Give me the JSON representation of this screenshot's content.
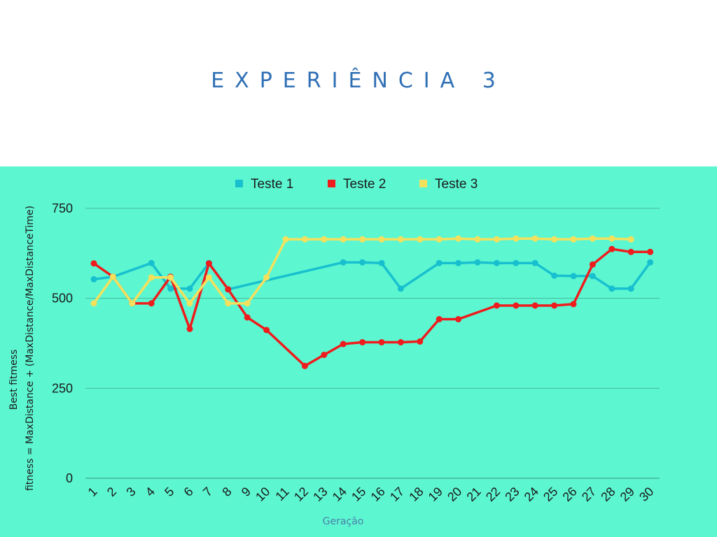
{
  "title": "EXPERIÊNCIA 3",
  "chart_data": {
    "type": "line",
    "xlabel": "Geração",
    "ylabel_lines": [
      "Best fitmess",
      "fitness =  MaxDistance + (MaxDistance/MaxDistanceTime)"
    ],
    "ylim": [
      0,
      750
    ],
    "yticks": [
      0,
      250,
      500,
      750
    ],
    "grid": true,
    "legend_position": "top",
    "categories": [
      1,
      2,
      3,
      4,
      5,
      6,
      7,
      8,
      9,
      10,
      11,
      12,
      13,
      14,
      15,
      16,
      17,
      18,
      19,
      20,
      21,
      22,
      23,
      24,
      25,
      26,
      27,
      28,
      29,
      30
    ],
    "series": [
      {
        "name": "Teste 1",
        "color": "#18c0cf",
        "points": [
          [
            1,
            553
          ],
          [
            2,
            560
          ],
          [
            4,
            598
          ],
          [
            5,
            527
          ],
          [
            6,
            527
          ],
          [
            7,
            598
          ],
          [
            8,
            525
          ],
          [
            14,
            600
          ],
          [
            15,
            600
          ],
          [
            16,
            598
          ],
          [
            17,
            527
          ],
          [
            19,
            598
          ],
          [
            20,
            598
          ],
          [
            21,
            600
          ],
          [
            22,
            598
          ],
          [
            23,
            598
          ],
          [
            24,
            598
          ],
          [
            25,
            563
          ],
          [
            26,
            562
          ],
          [
            27,
            562
          ],
          [
            28,
            527
          ],
          [
            29,
            527
          ],
          [
            30,
            600
          ]
        ]
      },
      {
        "name": "Teste 2",
        "color": "#ee1c1c",
        "points": [
          [
            1,
            597
          ],
          [
            2,
            560
          ],
          [
            3,
            486
          ],
          [
            4,
            486
          ],
          [
            5,
            560
          ],
          [
            6,
            415
          ],
          [
            7,
            597
          ],
          [
            8,
            525
          ],
          [
            9,
            447
          ],
          [
            10,
            412
          ],
          [
            12,
            312
          ],
          [
            13,
            343
          ],
          [
            14,
            373
          ],
          [
            15,
            378
          ],
          [
            16,
            378
          ],
          [
            17,
            378
          ],
          [
            18,
            380
          ],
          [
            19,
            442
          ],
          [
            20,
            442
          ],
          [
            22,
            480
          ],
          [
            23,
            480
          ],
          [
            24,
            480
          ],
          [
            25,
            480
          ],
          [
            26,
            484
          ],
          [
            27,
            594
          ],
          [
            28,
            637
          ],
          [
            29,
            629
          ],
          [
            30,
            629
          ]
        ]
      },
      {
        "name": "Teste 3",
        "color": "#f5e05c",
        "points": [
          [
            1,
            486
          ],
          [
            2,
            560
          ],
          [
            3,
            486
          ],
          [
            4,
            558
          ],
          [
            5,
            558
          ],
          [
            6,
            486
          ],
          [
            7,
            558
          ],
          [
            8,
            486
          ],
          [
            9,
            486
          ],
          [
            10,
            558
          ],
          [
            11,
            664
          ],
          [
            12,
            664
          ],
          [
            13,
            664
          ],
          [
            14,
            664
          ],
          [
            15,
            664
          ],
          [
            16,
            664
          ],
          [
            17,
            664
          ],
          [
            18,
            664
          ],
          [
            19,
            664
          ],
          [
            20,
            666
          ],
          [
            21,
            664
          ],
          [
            22,
            664
          ],
          [
            23,
            666
          ],
          [
            24,
            666
          ],
          [
            25,
            664
          ],
          [
            26,
            664
          ],
          [
            27,
            666
          ],
          [
            28,
            666
          ],
          [
            29,
            664
          ]
        ]
      }
    ]
  }
}
